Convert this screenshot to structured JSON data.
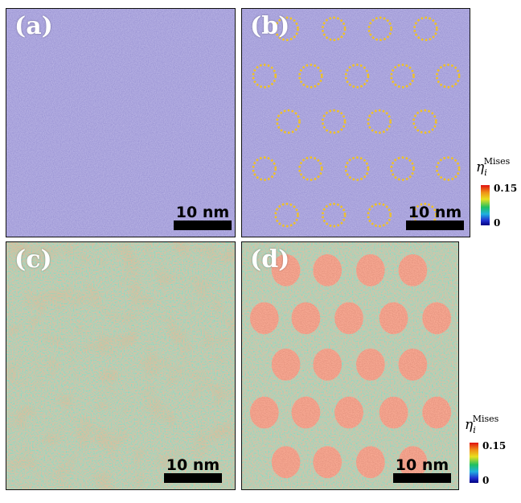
{
  "panels": [
    {
      "label": "(a)",
      "scale_text": "10 nm",
      "background": "#5a55b8"
    },
    {
      "label": "(b)",
      "scale_text": "10 nm",
      "background": "#5a55b8"
    },
    {
      "label": "(c)",
      "scale_text": "10 nm",
      "background": "#4db894"
    },
    {
      "label": "(d)",
      "scale_text": "10 nm",
      "background": "#4db894"
    }
  ],
  "colorbar": {
    "symbol": "η",
    "subscript": "i",
    "superscript": "Mises",
    "max_label": "0.15",
    "min_label": "0"
  },
  "colors": {
    "low_strain_blue": "#5a55b8",
    "mid_strain_green": "#4db894",
    "high_strain_red": "#d9603f",
    "ring_yellow": "#f2c21f"
  }
}
